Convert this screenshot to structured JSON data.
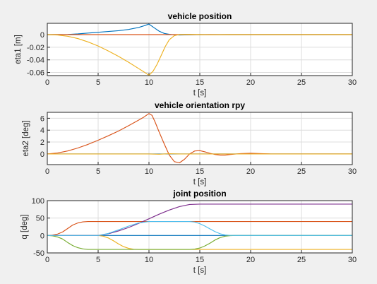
{
  "chart_data": [
    {
      "type": "line",
      "title": "vehicle position",
      "xlabel": "t [s]",
      "ylabel": "eta1 [m]",
      "xlim": [
        0,
        30
      ],
      "ylim": [
        -0.065,
        0.018
      ],
      "xticks": [
        "0",
        "5",
        "10",
        "15",
        "20",
        "25",
        "30"
      ],
      "yticks": [
        "0",
        "-0.02",
        "-0.04",
        "-0.06"
      ],
      "grid": true,
      "series": [
        {
          "color": "#0072bd",
          "x": [
            0,
            1,
            2,
            3,
            4,
            5,
            6,
            7,
            8,
            9,
            9.5,
            10,
            10.5,
            11,
            11.5,
            12,
            12.5,
            13,
            14,
            15,
            16,
            18,
            20,
            22,
            25,
            30
          ],
          "y": [
            0,
            0,
            0.0003,
            0.0012,
            0.0025,
            0.0038,
            0.005,
            0.0063,
            0.0082,
            0.0115,
            0.014,
            0.0168,
            0.011,
            0.0055,
            0.002,
            0.0005,
            -0.0003,
            -0.0005,
            -0.0003,
            0.0001,
            0.0002,
            0,
            0,
            0,
            0,
            0
          ]
        },
        {
          "color": "#d95319",
          "x": [
            0,
            30
          ],
          "y": [
            0,
            0
          ]
        },
        {
          "color": "#edb120",
          "x": [
            0,
            1,
            2,
            3,
            4,
            5,
            6,
            7,
            8,
            9,
            9.5,
            10,
            10.4,
            10.8,
            11.2,
            11.6,
            12,
            12.5,
            13,
            14,
            15,
            16,
            18,
            20,
            30
          ],
          "y": [
            0,
            -0.0005,
            -0.0025,
            -0.0062,
            -0.0115,
            -0.018,
            -0.0258,
            -0.0345,
            -0.0438,
            -0.054,
            -0.059,
            -0.0645,
            -0.058,
            -0.047,
            -0.033,
            -0.019,
            -0.008,
            -0.0015,
            0.0003,
            0.0004,
            0,
            -0.0002,
            0,
            0,
            0
          ]
        }
      ]
    },
    {
      "type": "line",
      "title": "vehicle orientation rpy",
      "xlabel": "t [s]",
      "ylabel": "eta2 [deg]",
      "xlim": [
        0,
        30
      ],
      "ylim": [
        -1.8,
        7.0
      ],
      "xticks": [
        "0",
        "5",
        "10",
        "15",
        "20",
        "25",
        "30"
      ],
      "yticks": [
        "6",
        "4",
        "2",
        "0"
      ],
      "grid": true,
      "series": [
        {
          "color": "#0072bd",
          "x": [
            0,
            30
          ],
          "y": [
            0,
            0
          ]
        },
        {
          "color": "#d95319",
          "x": [
            0,
            1,
            2,
            3,
            4,
            5,
            6,
            7,
            8,
            9,
            9.5,
            10,
            10.3,
            10.6,
            11,
            11.5,
            12,
            12.5,
            13,
            13.5,
            14,
            14.5,
            15,
            15.5,
            16,
            16.5,
            17,
            17.5,
            18,
            19,
            20,
            21,
            22,
            25,
            30
          ],
          "y": [
            0,
            0.15,
            0.5,
            1.0,
            1.6,
            2.3,
            3.05,
            3.85,
            4.75,
            5.7,
            6.2,
            6.8,
            6.5,
            5.4,
            3.7,
            1.7,
            -0.2,
            -1.3,
            -1.5,
            -0.9,
            0,
            0.5,
            0.55,
            0.35,
            0.1,
            -0.1,
            -0.2,
            -0.2,
            -0.1,
            0.05,
            0.1,
            0.05,
            0,
            0,
            0
          ]
        },
        {
          "color": "#edb120",
          "x": [
            0,
            10,
            11,
            12,
            13,
            30
          ],
          "y": [
            0,
            0,
            -0.05,
            0.03,
            0,
            0
          ]
        }
      ]
    },
    {
      "type": "line",
      "title": "joint position",
      "xlabel": "t [s]",
      "ylabel": "q [deg]",
      "xlim": [
        0,
        30
      ],
      "ylim": [
        -50,
        100
      ],
      "xticks": [
        "0",
        "5",
        "10",
        "15",
        "20",
        "25",
        "30"
      ],
      "yticks": [
        "100",
        "50",
        "0",
        "-50"
      ],
      "grid": true,
      "series": [
        {
          "color": "#0072bd",
          "x": [
            0,
            30
          ],
          "y": [
            0,
            0
          ]
        },
        {
          "color": "#d95319",
          "x": [
            0,
            0.5,
            1,
            1.5,
            2,
            2.5,
            3,
            3.5,
            4,
            4.5,
            5,
            30
          ],
          "y": [
            0,
            1,
            4,
            10,
            20,
            30,
            36,
            39,
            40,
            40,
            40,
            40
          ]
        },
        {
          "color": "#edb120",
          "x": [
            0,
            5,
            5.5,
            6,
            6.5,
            7,
            7.5,
            8,
            8.5,
            9,
            30
          ],
          "y": [
            0,
            0,
            -2,
            -7,
            -15,
            -24,
            -32,
            -37,
            -39.5,
            -40,
            -40
          ]
        },
        {
          "color": "#7e2f8e",
          "x": [
            0,
            5,
            6,
            7,
            8,
            9,
            10,
            11,
            12,
            13,
            14,
            15,
            30
          ],
          "y": [
            0,
            0,
            5,
            13,
            23,
            35,
            48,
            61,
            73,
            83,
            89,
            90,
            90
          ]
        },
        {
          "color": "#77ac30",
          "x": [
            0,
            0.5,
            1,
            1.5,
            2,
            2.5,
            3,
            3.5,
            4,
            4.5,
            5,
            14,
            14.5,
            15,
            15.5,
            16,
            16.5,
            17,
            17.5,
            18,
            18.5,
            30
          ],
          "y": [
            0,
            -1,
            -4,
            -10,
            -20,
            -29,
            -35,
            -38.5,
            -40,
            -40,
            -40,
            -40,
            -39,
            -36,
            -30,
            -22,
            -13,
            -6,
            -2,
            -0.5,
            0,
            0
          ]
        },
        {
          "color": "#4dbeee",
          "x": [
            0,
            5,
            6,
            7,
            8,
            9,
            10,
            14,
            14.5,
            15,
            15.5,
            16,
            16.5,
            17,
            17.5,
            18,
            18.5,
            30
          ],
          "y": [
            0,
            0,
            6,
            16,
            27,
            36,
            40,
            40,
            38.5,
            34,
            27,
            19,
            11,
            5,
            1.5,
            0.3,
            0,
            0
          ]
        }
      ]
    }
  ]
}
